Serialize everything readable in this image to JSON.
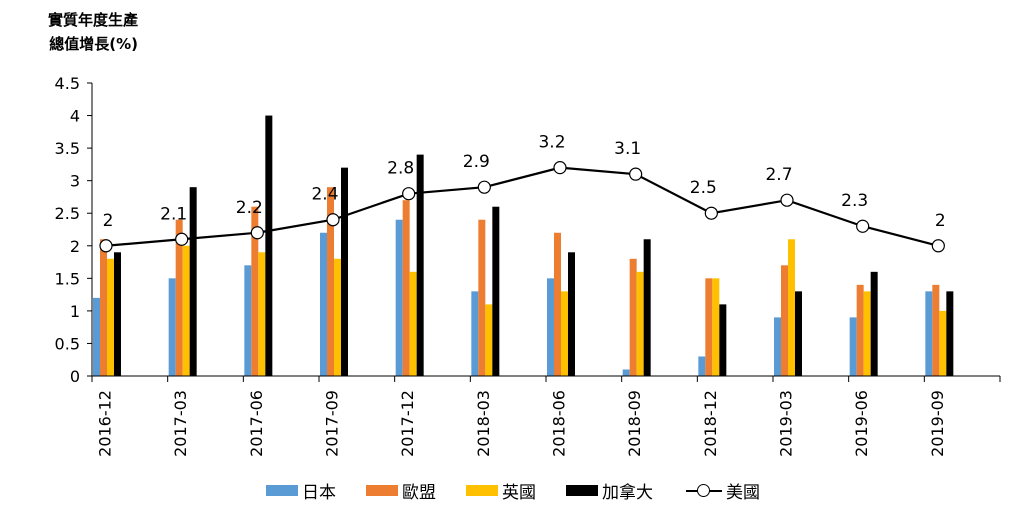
{
  "chart_data": {
    "type": "bar",
    "ylabel_lines": [
      "實質年度生產",
      "總值增長(%)"
    ],
    "ylim": [
      0,
      4.5
    ],
    "yticks": [
      "0",
      "0.5",
      "1",
      "1.5",
      "2",
      "2.5",
      "3",
      "3.5",
      "4",
      "4.5"
    ],
    "categories": [
      "2016-12",
      "2017-03",
      "2017-06",
      "2017-09",
      "2017-12",
      "2018-03",
      "2018-06",
      "2018-09",
      "2018-12",
      "2019-03",
      "2019-06",
      "2019-09"
    ],
    "series": [
      {
        "name": "日本",
        "color": "#5B9BD5",
        "values": [
          1.2,
          1.5,
          1.7,
          2.2,
          2.4,
          1.3,
          1.5,
          0.1,
          0.3,
          0.9,
          0.9,
          1.3
        ]
      },
      {
        "name": "歐盟",
        "color": "#ED7D31",
        "values": [
          2.1,
          2.4,
          2.6,
          2.9,
          2.7,
          2.4,
          2.2,
          1.8,
          1.5,
          1.7,
          1.4,
          1.4
        ]
      },
      {
        "name": "英國",
        "color": "#FFC000",
        "values": [
          1.8,
          2.0,
          1.9,
          1.8,
          1.6,
          1.1,
          1.3,
          1.6,
          1.5,
          2.1,
          1.3,
          1.0
        ]
      },
      {
        "name": "加拿大",
        "color": "#000000",
        "values": [
          1.9,
          2.9,
          4.0,
          3.2,
          3.4,
          2.6,
          1.9,
          2.1,
          1.1,
          1.3,
          1.6,
          1.3
        ]
      }
    ],
    "line_series": {
      "name": "美國",
      "color": "#000000",
      "values": [
        2,
        2.1,
        2.2,
        2.4,
        2.8,
        2.9,
        3.2,
        3.1,
        2.5,
        2.7,
        2.3,
        2
      ],
      "labels": [
        "2",
        "2.1",
        "2.2",
        "2.4",
        "2.8",
        "2.9",
        "3.2",
        "3.1",
        "2.5",
        "2.7",
        "2.3",
        "2"
      ]
    },
    "legend_placement": "bottom",
    "grid": false
  }
}
